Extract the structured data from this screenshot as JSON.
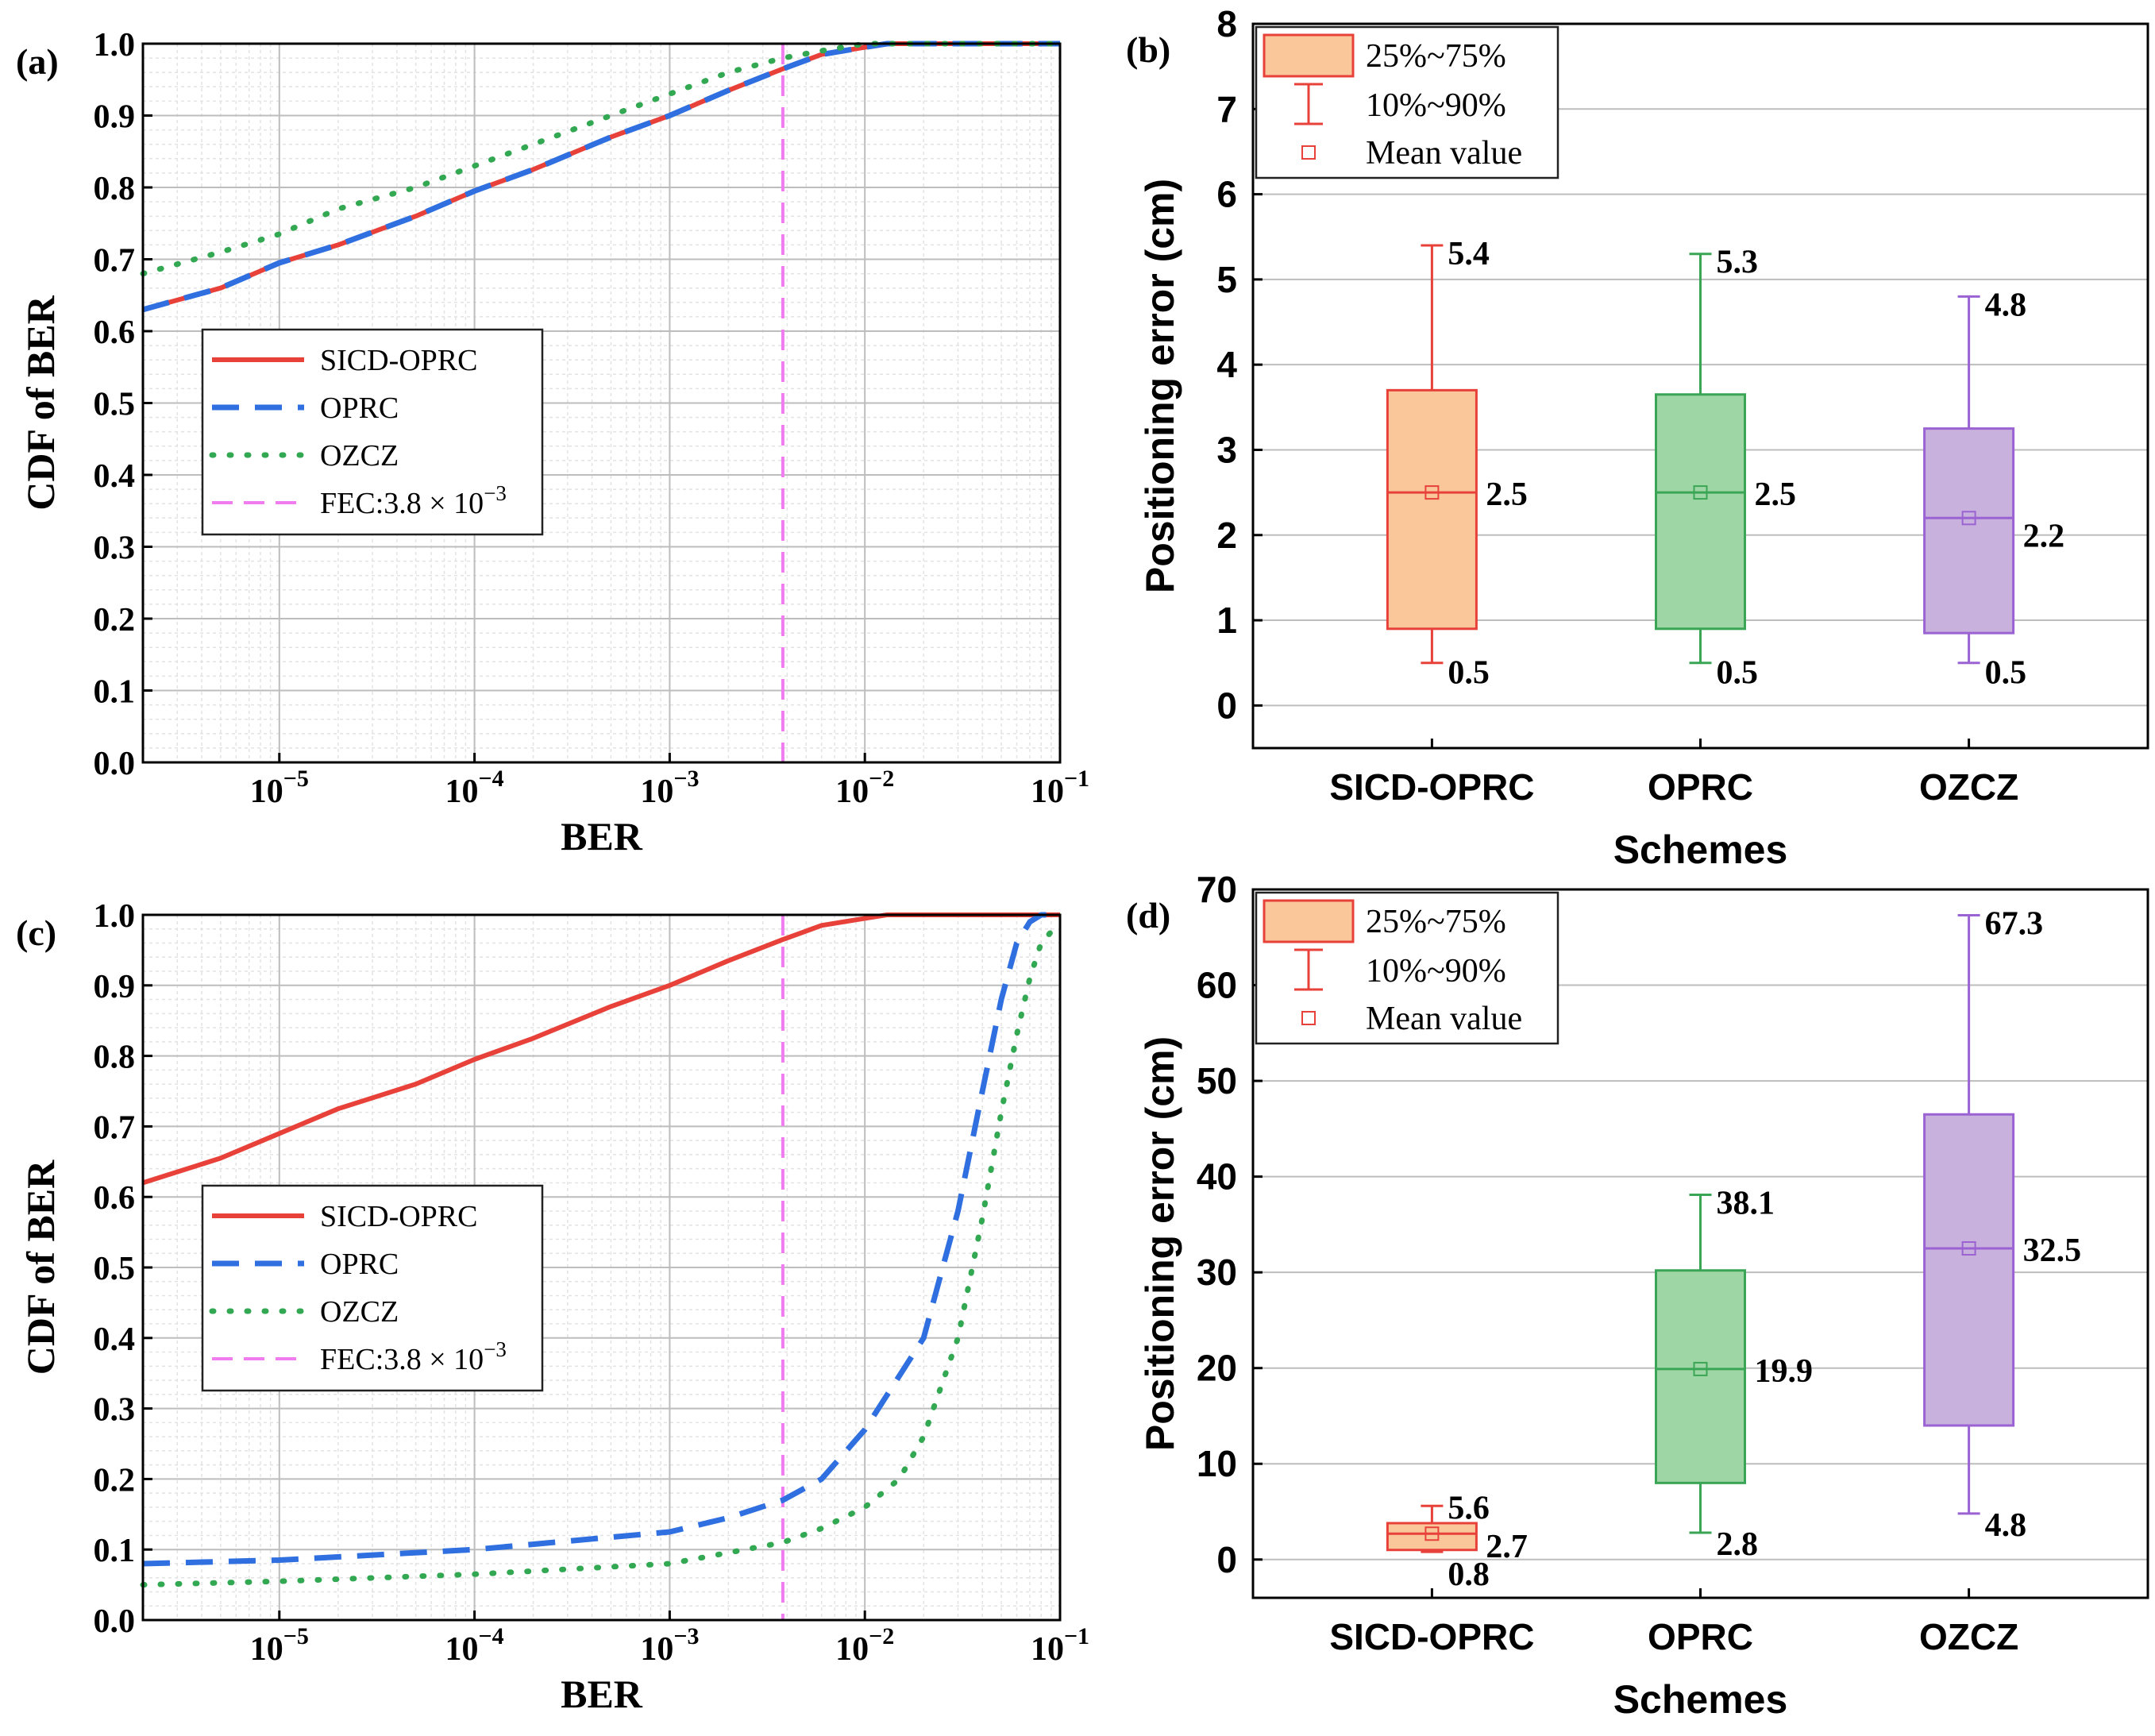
{
  "colors": {
    "sicd": "#e8413a",
    "oprc": "#2f6fe0",
    "ozcz": "#33a852",
    "fec": "#f07cf0",
    "grid_major": "#bdbdbd",
    "grid_minor": "#e3e3e3",
    "box_sicd_fill": "#f9c79a",
    "box_sicd_line": "#e8413a",
    "box_oprc_fill": "#9fd6a5",
    "box_oprc_line": "#3aa655",
    "box_ozcz_fill": "#c9b1dd",
    "box_ozcz_line": "#9a62d2"
  },
  "chart_data": [
    {
      "panel": "(a)",
      "type": "line",
      "xscale": "log",
      "xlim": [
        2e-06,
        0.1
      ],
      "ylim": [
        0,
        1.0
      ],
      "xlabel": "BER",
      "ylabel": "CDF of BER",
      "xtick_labels": [
        {
          "base": "10",
          "exp": "−5"
        },
        {
          "base": "10",
          "exp": "−4"
        },
        {
          "base": "10",
          "exp": "−3"
        },
        {
          "base": "10",
          "exp": "−2"
        },
        {
          "base": "10",
          "exp": "−1"
        }
      ],
      "ytick_labels": [
        "0.0",
        "0.1",
        "0.2",
        "0.3",
        "0.4",
        "0.5",
        "0.6",
        "0.7",
        "0.8",
        "0.9",
        "1.0"
      ],
      "legend": {
        "position": "center-left",
        "entries": [
          "SICD-OPRC",
          "OPRC",
          "OZCZ",
          "FEC:3.8 × 10"
        ],
        "fec_exp": "−3"
      },
      "fec_line_x": 0.0038,
      "series": [
        {
          "name": "SICD-OPRC",
          "style": "solid",
          "x": [
            2e-06,
            5e-06,
            1e-05,
            2e-05,
            5e-05,
            0.0001,
            0.0002,
            0.0005,
            0.001,
            0.002,
            0.0038,
            0.006,
            0.01,
            0.013,
            0.1
          ],
          "y": [
            0.63,
            0.66,
            0.695,
            0.72,
            0.76,
            0.795,
            0.825,
            0.87,
            0.9,
            0.935,
            0.965,
            0.985,
            0.995,
            1.0,
            1.0
          ]
        },
        {
          "name": "OPRC",
          "style": "dash",
          "x": [
            2e-06,
            5e-06,
            1e-05,
            2e-05,
            5e-05,
            0.0001,
            0.0002,
            0.0005,
            0.001,
            0.002,
            0.0038,
            0.006,
            0.01,
            0.013,
            0.1
          ],
          "y": [
            0.63,
            0.66,
            0.695,
            0.72,
            0.76,
            0.795,
            0.825,
            0.87,
            0.9,
            0.935,
            0.965,
            0.985,
            0.995,
            1.0,
            1.0
          ]
        },
        {
          "name": "OZCZ",
          "style": "dot",
          "x": [
            2e-06,
            5e-06,
            1e-05,
            2e-05,
            5e-05,
            0.0001,
            0.0002,
            0.0005,
            0.001,
            0.002,
            0.0038,
            0.006,
            0.01,
            0.013,
            0.1
          ],
          "y": [
            0.68,
            0.71,
            0.735,
            0.77,
            0.8,
            0.83,
            0.86,
            0.9,
            0.93,
            0.96,
            0.98,
            0.99,
            1.0,
            1.0,
            1.0
          ]
        }
      ]
    },
    {
      "panel": "(b)",
      "type": "box",
      "ylim": [
        -0.5,
        8
      ],
      "xlabel": "Schemes",
      "ylabel": "Positioning error (cm)",
      "categories": [
        "SICD-OPRC",
        "OPRC",
        "OZCZ"
      ],
      "ytick_labels": [
        "0",
        "1",
        "2",
        "3",
        "4",
        "5",
        "6",
        "7",
        "8"
      ],
      "legend": {
        "position": "top-left",
        "entries": [
          "25%~75%",
          "10%~90%",
          "Mean value"
        ]
      },
      "boxes": [
        {
          "name": "SICD-OPRC",
          "p10": 0.5,
          "q1": 0.9,
          "median": 2.5,
          "mean": 2.5,
          "q3": 3.7,
          "p90": 5.4,
          "labels": {
            "top": "5.4",
            "mid": "2.5",
            "bottom": "0.5"
          }
        },
        {
          "name": "OPRC",
          "p10": 0.5,
          "q1": 0.9,
          "median": 2.5,
          "mean": 2.5,
          "q3": 3.65,
          "p90": 5.3,
          "labels": {
            "top": "5.3",
            "mid": "2.5",
            "bottom": "0.5"
          }
        },
        {
          "name": "OZCZ",
          "p10": 0.5,
          "q1": 0.85,
          "median": 2.2,
          "mean": 2.2,
          "q3": 3.25,
          "p90": 4.8,
          "labels": {
            "top": "4.8",
            "mid": "2.2",
            "bottom": "0.5"
          }
        }
      ]
    },
    {
      "panel": "(c)",
      "type": "line",
      "xscale": "log",
      "xlim": [
        2e-06,
        0.1
      ],
      "ylim": [
        0,
        1.0
      ],
      "xlabel": "BER",
      "ylabel": "CDF of BER",
      "xtick_labels": [
        {
          "base": "10",
          "exp": "−5"
        },
        {
          "base": "10",
          "exp": "−4"
        },
        {
          "base": "10",
          "exp": "−3"
        },
        {
          "base": "10",
          "exp": "−2"
        },
        {
          "base": "10",
          "exp": "−1"
        }
      ],
      "ytick_labels": [
        "0.0",
        "0.1",
        "0.2",
        "0.3",
        "0.4",
        "0.5",
        "0.6",
        "0.7",
        "0.8",
        "0.9",
        "1.0"
      ],
      "legend": {
        "position": "center-left",
        "entries": [
          "SICD-OPRC",
          "OPRC",
          "OZCZ",
          "FEC:3.8 × 10"
        ],
        "fec_exp": "−3"
      },
      "fec_line_x": 0.0038,
      "series": [
        {
          "name": "SICD-OPRC",
          "style": "solid",
          "x": [
            2e-06,
            5e-06,
            1e-05,
            2e-05,
            5e-05,
            0.0001,
            0.0002,
            0.0005,
            0.001,
            0.002,
            0.0038,
            0.006,
            0.01,
            0.013,
            0.1
          ],
          "y": [
            0.62,
            0.655,
            0.69,
            0.725,
            0.76,
            0.795,
            0.825,
            0.87,
            0.9,
            0.935,
            0.965,
            0.985,
            0.995,
            1.0,
            1.0
          ]
        },
        {
          "name": "OPRC",
          "style": "dash",
          "x": [
            2e-06,
            1e-05,
            0.0001,
            0.001,
            0.002,
            0.0038,
            0.006,
            0.01,
            0.02,
            0.03,
            0.04,
            0.05,
            0.06,
            0.07,
            0.08,
            0.1
          ],
          "y": [
            0.08,
            0.085,
            0.1,
            0.125,
            0.145,
            0.17,
            0.2,
            0.27,
            0.4,
            0.58,
            0.75,
            0.88,
            0.96,
            0.99,
            1.0,
            1.0
          ]
        },
        {
          "name": "OZCZ",
          "style": "dot",
          "x": [
            2e-06,
            1e-05,
            0.0001,
            0.001,
            0.0038,
            0.006,
            0.01,
            0.015,
            0.02,
            0.03,
            0.04,
            0.05,
            0.06,
            0.07,
            0.08,
            0.1
          ],
          "y": [
            0.05,
            0.055,
            0.065,
            0.08,
            0.11,
            0.13,
            0.16,
            0.2,
            0.26,
            0.4,
            0.57,
            0.72,
            0.83,
            0.91,
            0.96,
            0.99
          ]
        }
      ]
    },
    {
      "panel": "(d)",
      "type": "box",
      "ylim": [
        -4,
        70
      ],
      "xlabel": "Schemes",
      "ylabel": "Positioning error (cm)",
      "categories": [
        "SICD-OPRC",
        "OPRC",
        "OZCZ"
      ],
      "ytick_labels": [
        "0",
        "10",
        "20",
        "30",
        "40",
        "50",
        "60",
        "70"
      ],
      "legend": {
        "position": "top-left",
        "entries": [
          "25%~75%",
          "10%~90%",
          "Mean value"
        ]
      },
      "boxes": [
        {
          "name": "SICD-OPRC",
          "p10": 0.8,
          "q1": 1.0,
          "median": 2.7,
          "mean": 2.7,
          "q3": 3.8,
          "p90": 5.6,
          "labels": {
            "top": "5.6",
            "mid": "2.7",
            "bottom": "0.8"
          }
        },
        {
          "name": "OPRC",
          "p10": 2.8,
          "q1": 8.0,
          "median": 19.9,
          "mean": 19.9,
          "q3": 30.2,
          "p90": 38.1,
          "labels": {
            "top": "38.1",
            "mid": "19.9",
            "bottom": "2.8"
          }
        },
        {
          "name": "OZCZ",
          "p10": 4.8,
          "q1": 14.0,
          "median": 32.5,
          "mean": 32.5,
          "q3": 46.5,
          "p90": 67.3,
          "labels": {
            "top": "67.3",
            "mid": "32.5",
            "bottom": "4.8"
          }
        }
      ]
    }
  ]
}
